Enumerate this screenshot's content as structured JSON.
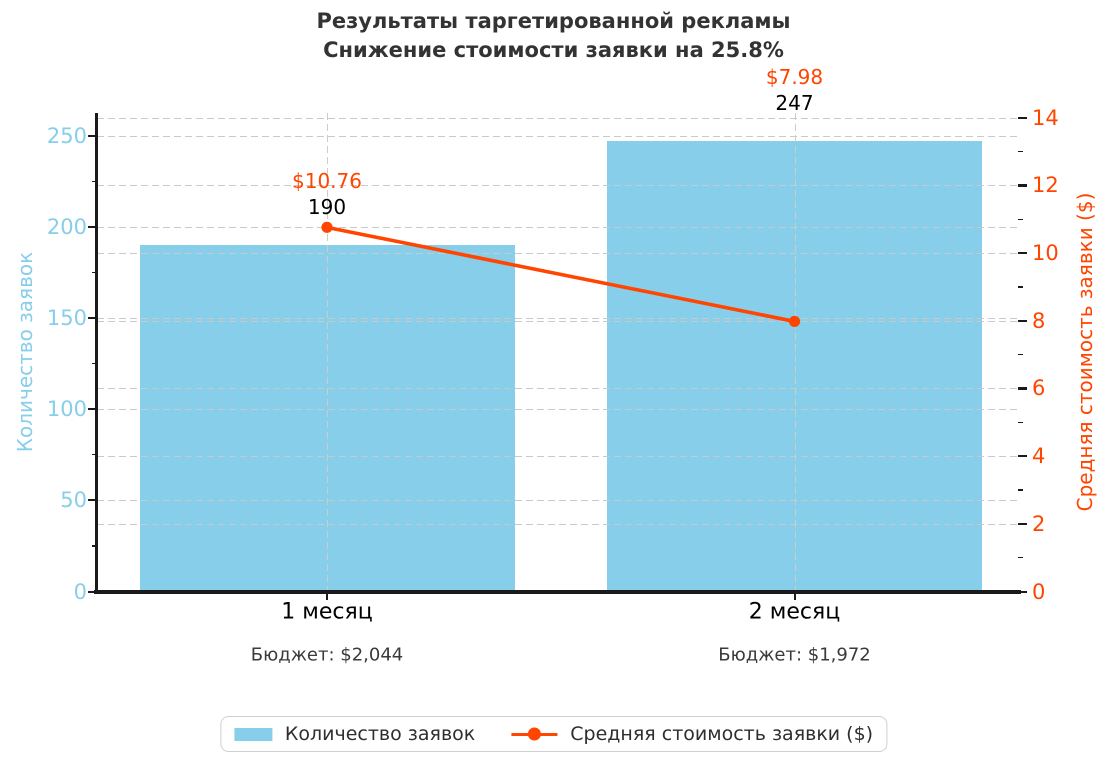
{
  "title": {
    "line1": "Результаты таргетированной рекламы",
    "line2": "Снижение стоимости заявки на 25.8%"
  },
  "chart_data": {
    "type": "bar",
    "subtype": "combo bar + line, dual y-axes",
    "categories": [
      "1 месяц",
      "2 месяц"
    ],
    "series": [
      {
        "name": "Количество заявок",
        "type": "bar",
        "axis": "left",
        "color": "#87CEEB",
        "values": [
          190,
          247
        ],
        "labels": [
          "190",
          "247"
        ]
      },
      {
        "name": "Средняя стоимость заявки ($)",
        "type": "line",
        "axis": "right",
        "color": "#FF4500",
        "values": [
          10.76,
          7.98
        ],
        "labels": [
          "$10.76",
          "$7.98"
        ]
      }
    ],
    "budget_notes": [
      "Бюджет: $2,044",
      "Бюджет: $1,972"
    ],
    "xlabel": "",
    "ylabel_left": "Количество заявок",
    "ylabel_right": "Средняя стоимость заявки ($)",
    "ylim_left": [
      0,
      250
    ],
    "ylim_right": [
      0,
      14
    ],
    "yticks_left": [
      0,
      50,
      100,
      150,
      200,
      250
    ],
    "yticks_right": [
      0,
      2,
      4,
      6,
      8,
      10,
      12,
      14
    ],
    "grid": "dashed horizontal gridlines for both y-axes, dashed vertical gridlines at each category",
    "legend_position": "bottom center"
  },
  "colors": {
    "bar_fill": "#87CEEB",
    "line": "#FF4500",
    "left_axis_text": "#87CEEB",
    "right_axis_text": "#FF4500",
    "gridline": "#c9c9c9",
    "spine": "#1a1a1a",
    "title_text": "#333333",
    "background": "#ffffff"
  }
}
